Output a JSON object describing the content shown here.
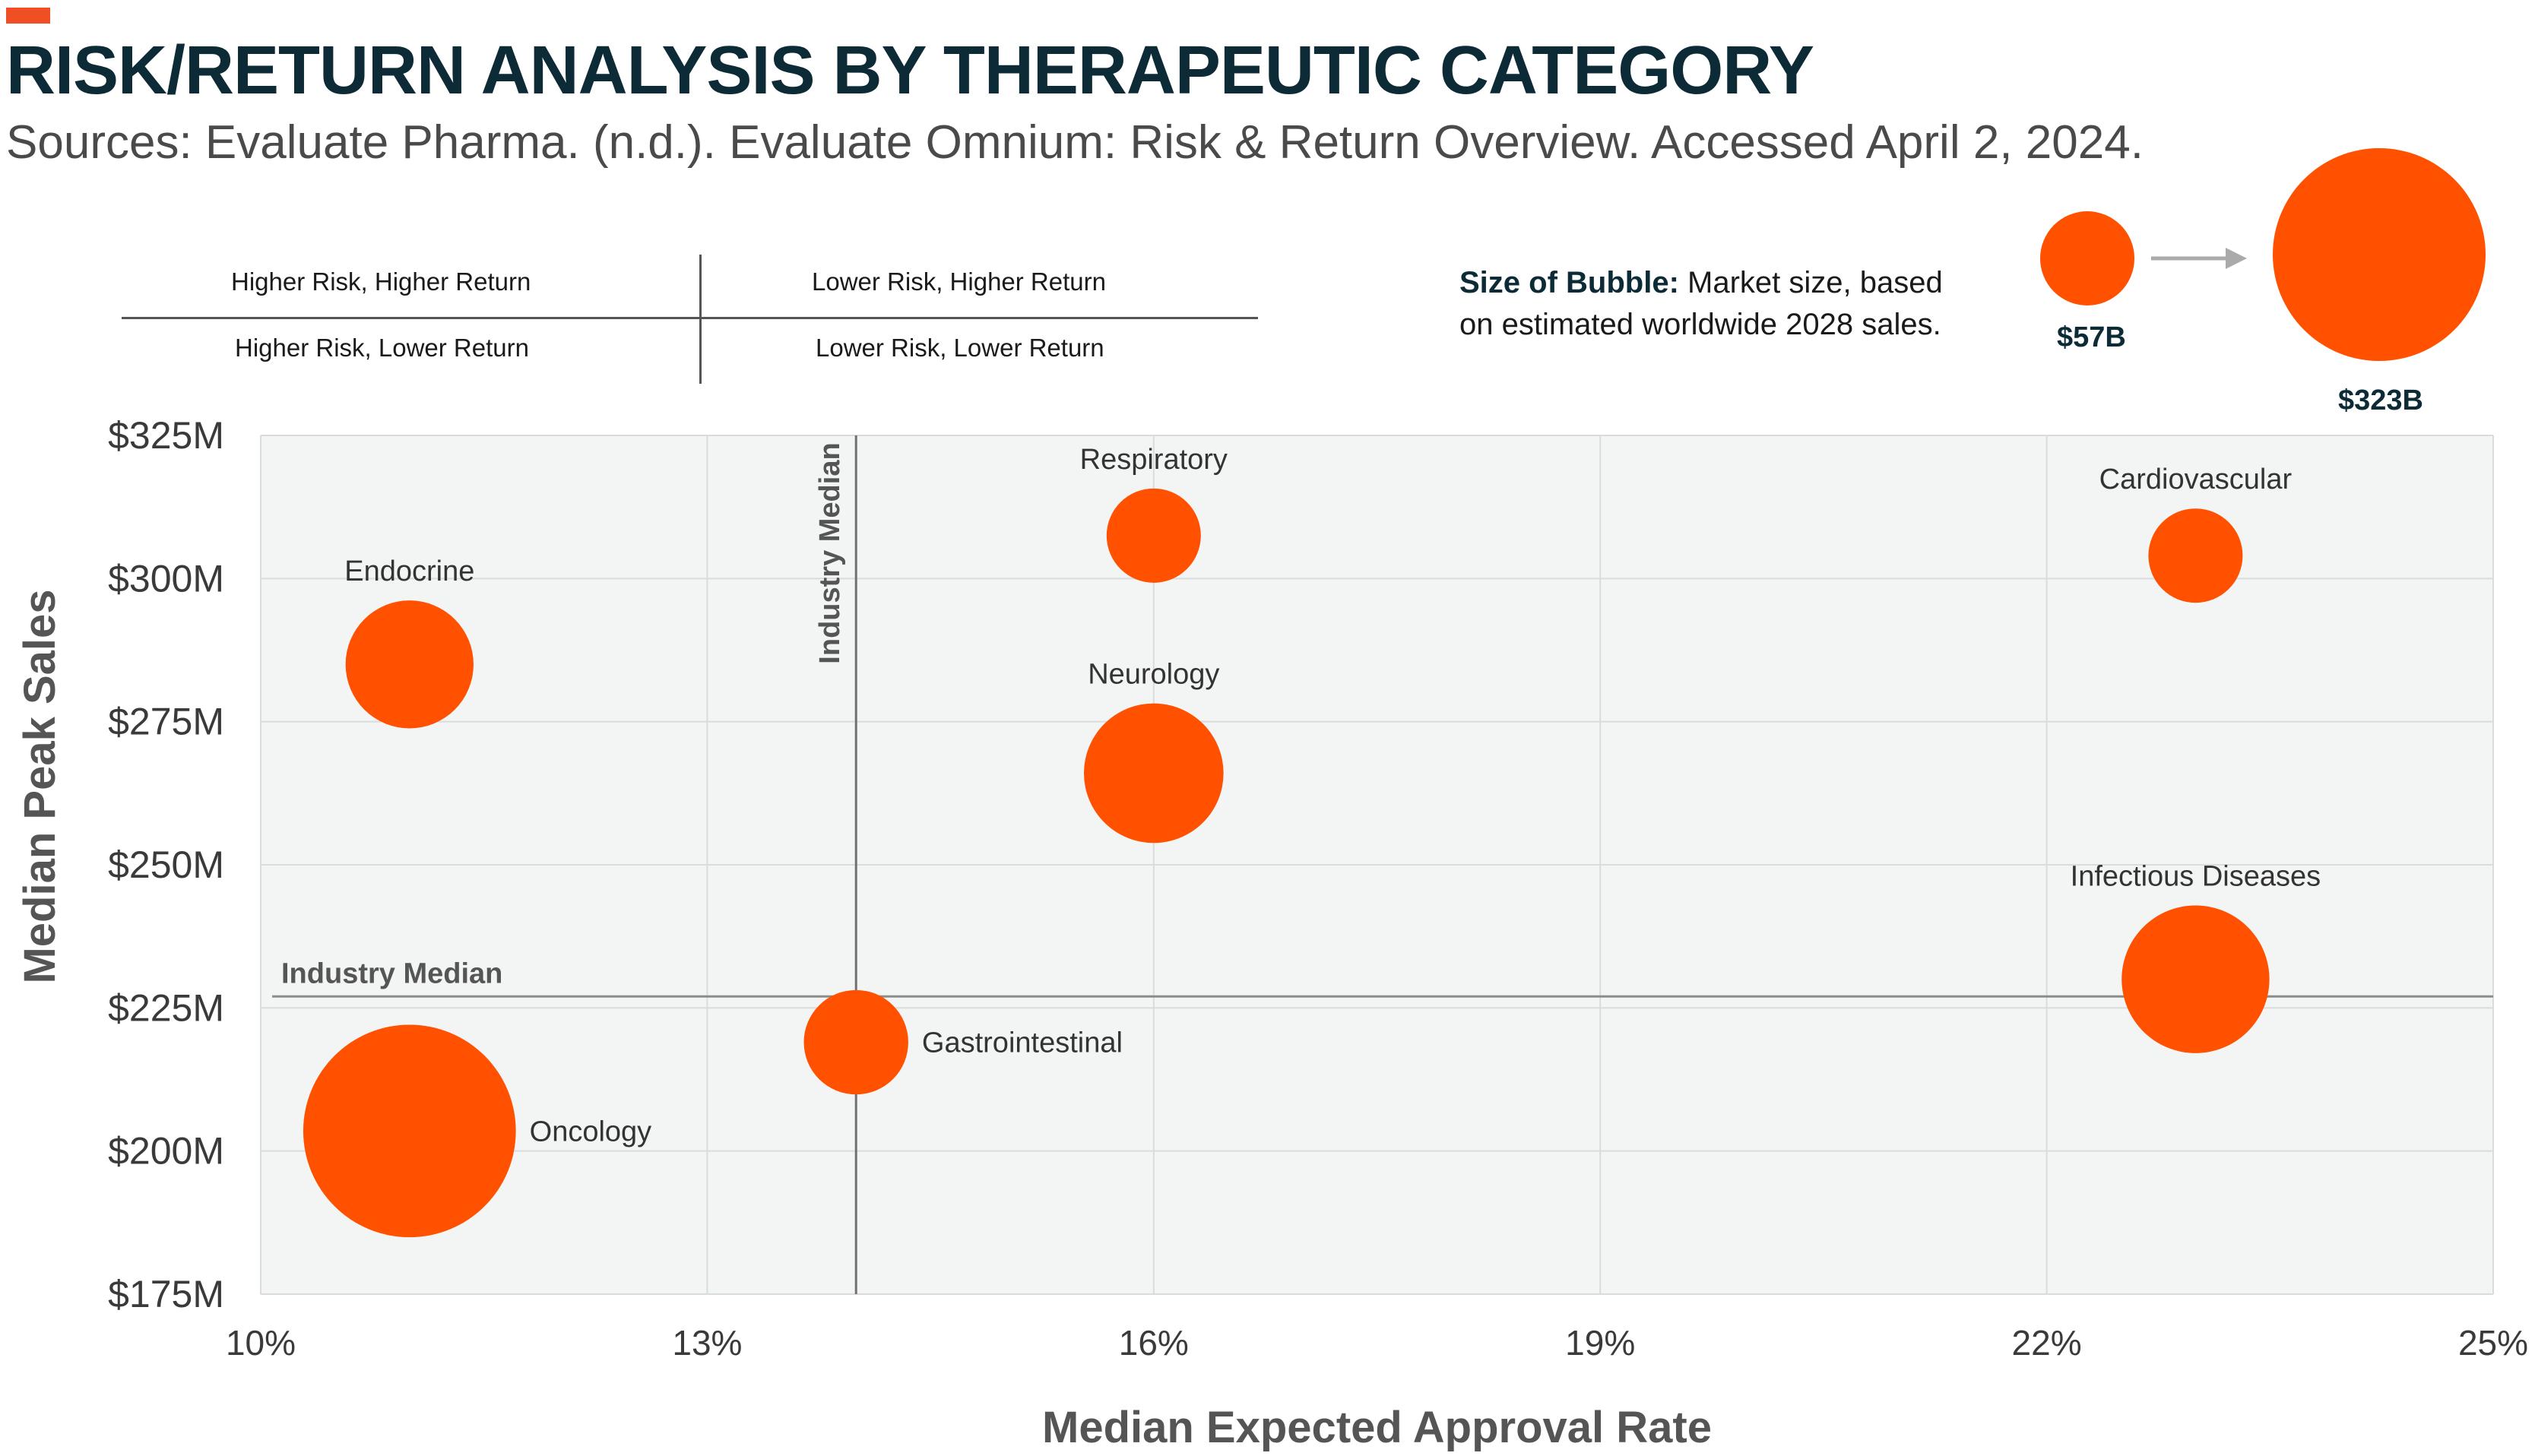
{
  "header": {
    "title": "RISK/RETURN ANALYSIS BY THERAPEUTIC CATEGORY",
    "subtitle": "Sources: Evaluate Pharma. (n.d.). Evaluate Omnium: Risk & Return Overview. Accessed April 2, 2024."
  },
  "quadrant_key": {
    "top_left": "Higher Risk, Higher Return",
    "top_right": "Lower Risk, Higher Return",
    "bottom_left": "Higher Risk, Lower Return",
    "bottom_right": "Lower Risk, Lower Return"
  },
  "size_legend": {
    "title": "Size of Bubble:",
    "text_line1": "Market size, based",
    "text_line2": "on estimated worldwide 2028 sales.",
    "small_label": "$57B",
    "large_label": "$323B",
    "small_value": 57,
    "large_value": 323
  },
  "colors": {
    "accent": "#f04e23",
    "bubble": "#ff5100",
    "title": "#0d2b36",
    "plot_bg": "#f3f5f5",
    "grid": "#d9dcdc",
    "median_line": "#8c8c8c"
  },
  "chart_data": {
    "type": "scatter",
    "xlabel": "Median Expected Approval Rate",
    "ylabel": "Median Peak Sales",
    "xlim": [
      10,
      25
    ],
    "ylim": [
      175,
      325
    ],
    "x_ticks": [
      10,
      13,
      16,
      19,
      22,
      25
    ],
    "x_tick_labels": [
      "10%",
      "13%",
      "16%",
      "19%",
      "22%",
      "25%"
    ],
    "y_ticks": [
      175,
      200,
      225,
      250,
      275,
      300,
      325
    ],
    "y_tick_labels": [
      "$175M",
      "$200M",
      "$225M",
      "$250M",
      "$275M",
      "$300M",
      "$325M"
    ],
    "grid": true,
    "median_x": 14,
    "median_y": 227,
    "median_x_label": "Industry Median",
    "median_y_label": "Industry Median",
    "points": [
      {
        "name": "Endocrine",
        "x": 11,
        "y": 285,
        "size": 105,
        "label_pos": "top"
      },
      {
        "name": "Respiratory",
        "x": 16,
        "y": 307.5,
        "size": 57,
        "label_pos": "top"
      },
      {
        "name": "Cardiovascular",
        "x": 23,
        "y": 304,
        "size": 57,
        "label_pos": "top"
      },
      {
        "name": "Neurology",
        "x": 16,
        "y": 266,
        "size": 125,
        "label_pos": "top"
      },
      {
        "name": "Infectious Diseases",
        "x": 23,
        "y": 230,
        "size": 140,
        "label_pos": "top"
      },
      {
        "name": "Gastrointestinal",
        "x": 14,
        "y": 219,
        "size": 70,
        "label_pos": "right"
      },
      {
        "name": "Oncology",
        "x": 11,
        "y": 203.5,
        "size": 290,
        "label_pos": "right"
      }
    ]
  }
}
